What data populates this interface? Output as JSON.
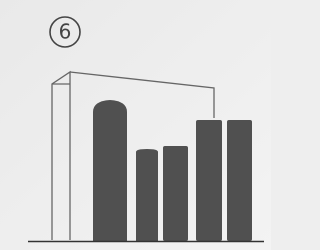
{
  "label": "6"
}
